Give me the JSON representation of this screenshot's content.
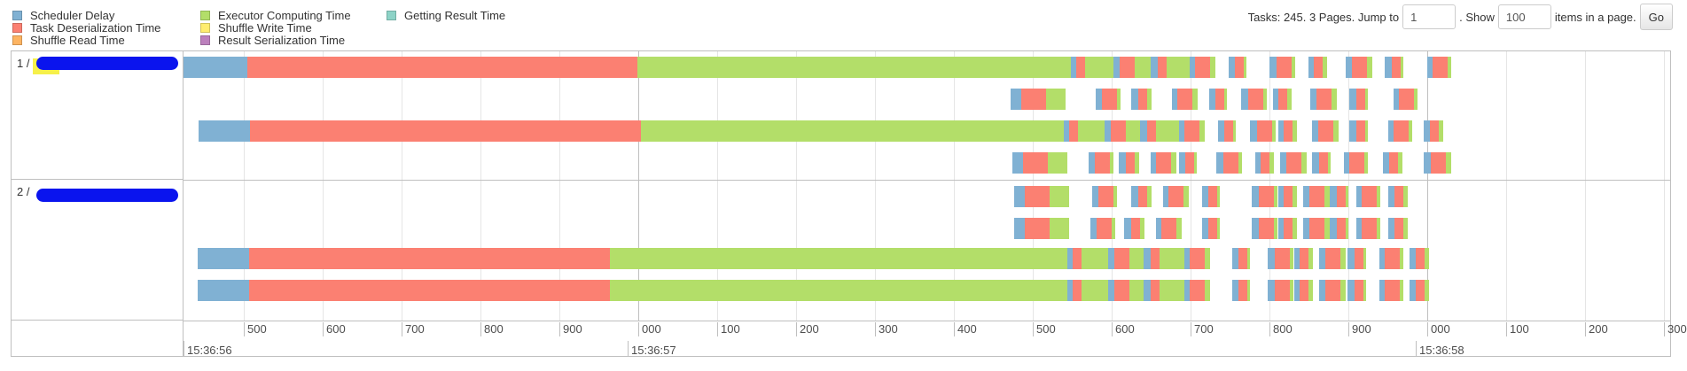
{
  "legend": [
    {
      "label": "Scheduler Delay",
      "color": "#80b1d3",
      "col": 0,
      "row": 0
    },
    {
      "label": "Task Deserialization Time",
      "color": "#fb8072",
      "col": 0,
      "row": 1
    },
    {
      "label": "Shuffle Read Time",
      "color": "#fdb462",
      "col": 0,
      "row": 2
    },
    {
      "label": "Executor Computing Time",
      "color": "#b3de69",
      "col": 1,
      "row": 0
    },
    {
      "label": "Shuffle Write Time",
      "color": "#ffed6f",
      "col": 1,
      "row": 1
    },
    {
      "label": "Result Serialization Time",
      "color": "#bc80bd",
      "col": 1,
      "row": 2
    },
    {
      "label": "Getting Result Time",
      "color": "#8dd3c7",
      "col": 2,
      "row": 0
    }
  ],
  "pagination": {
    "prefix": "Tasks: 245. 3 Pages. Jump to",
    "page_value": "1",
    "show_label": ". Show",
    "page_size_value": "100",
    "suffix": "items in a page.",
    "go_label": "Go"
  },
  "groups": [
    {
      "label": "1 /"
    },
    {
      "label": "2 /"
    }
  ],
  "axis": {
    "minor_ticks": [
      "500",
      "600",
      "700",
      "800",
      "900",
      "000",
      "100",
      "200",
      "300",
      "400",
      "500",
      "600",
      "700",
      "800",
      "900",
      "000",
      "100",
      "200",
      "300"
    ],
    "major_ticks": [
      "15:36:56",
      "15:36:57",
      "15:36:58"
    ]
  },
  "tasks": {
    "long": [
      {
        "lane": 0,
        "start": 0,
        "sched": 72,
        "deser": 440,
        "exec": 632
      },
      {
        "lane": 2,
        "start": 17,
        "sched": 58,
        "deser": 441,
        "exec": 632
      },
      {
        "lane": 6,
        "start": 16,
        "sched": 58,
        "deser": 407,
        "exec": 666
      },
      {
        "lane": 7,
        "start": 16,
        "sched": 58,
        "deser": 407,
        "exec": 666
      }
    ],
    "short_lanes": [
      [
        1208,
        1256,
        1298,
        1342,
        1386,
        1432,
        1476,
        1518,
        1562,
        1610
      ],
      [
        1140,
        1236,
        1276,
        1322,
        1364,
        1400,
        1436,
        1478,
        1522,
        1572
      ],
      [
        1200,
        1246,
        1286,
        1330,
        1374,
        1410,
        1442,
        1480,
        1522,
        1566,
        1606
      ],
      [
        1142,
        1228,
        1262,
        1298,
        1330,
        1372,
        1416,
        1444,
        1480,
        1516,
        1560,
        1606
      ],
      [
        1144,
        1232,
        1276,
        1312,
        1356,
        1412,
        1442,
        1470,
        1500,
        1530,
        1566
      ],
      [
        1144,
        1230,
        1268,
        1304,
        1356,
        1412,
        1442,
        1470,
        1500,
        1530,
        1566
      ],
      [
        1204,
        1250,
        1290,
        1336,
        1390,
        1430,
        1460,
        1488,
        1520,
        1556,
        1590
      ],
      [
        1204,
        1250,
        1290,
        1336,
        1390,
        1430,
        1460,
        1488,
        1520,
        1556,
        1590
      ]
    ]
  }
}
